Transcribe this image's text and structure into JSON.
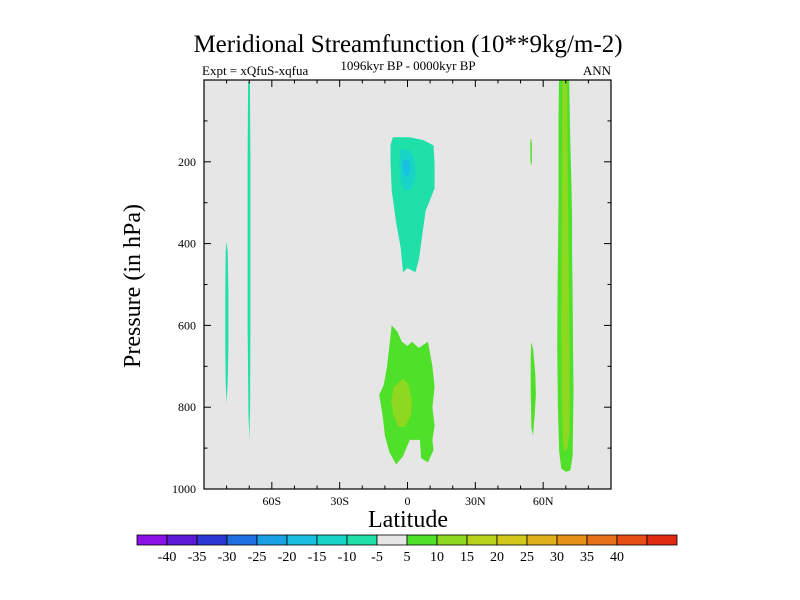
{
  "chart_data": {
    "type": "heatmap",
    "title": "Meridional Streamfunction (10**9kg/m-2)",
    "left_subtitle": "Expt = xQfuS-xqfua",
    "center_subtitle": "1096kyr BP - 0000kyr BP",
    "right_subtitle": "ANN",
    "xlabel": "Latitude",
    "ylabel": "Pressure (in hPa)",
    "xlim": [
      -90,
      90
    ],
    "ylim": [
      1000,
      0
    ],
    "x_ticks": [
      {
        "value": -60,
        "label": "60S"
      },
      {
        "value": -30,
        "label": "30S"
      },
      {
        "value": 0,
        "label": "0"
      },
      {
        "value": 30,
        "label": "30N"
      },
      {
        "value": 60,
        "label": "60N"
      }
    ],
    "y_ticks": [
      {
        "value": 200,
        "label": "200"
      },
      {
        "value": 400,
        "label": "400"
      },
      {
        "value": 600,
        "label": "600"
      },
      {
        "value": 800,
        "label": "800"
      },
      {
        "value": 1000,
        "label": "1000"
      }
    ],
    "background_color": "#e6e6e6",
    "colorbar": {
      "colors": [
        "#8a12e6",
        "#5c1ad6",
        "#2a38d2",
        "#1f6fe0",
        "#1aa0e4",
        "#19bfe0",
        "#18d4c8",
        "#1ee0a8",
        "#e6e6e6",
        "#4fe02a",
        "#8ed81f",
        "#b6d21a",
        "#d2c81a",
        "#e0b01a",
        "#e69018",
        "#e67018",
        "#e64e16",
        "#e02a12"
      ],
      "labels": [
        "-40",
        "-35",
        "-30",
        "-25",
        "-20",
        "-15",
        "-10",
        "-5",
        "5",
        "10",
        "15",
        "20",
        "25",
        "30",
        "35",
        "40"
      ]
    },
    "regions": [
      {
        "name": "ss-column-80s",
        "value": -7.5,
        "color": "#1ee0a8",
        "points": [
          [
            -80,
            395
          ],
          [
            -79.5,
            420
          ],
          [
            -79.2,
            520
          ],
          [
            -79.2,
            650
          ],
          [
            -79.5,
            740
          ],
          [
            -80,
            790
          ],
          [
            -80.4,
            740
          ],
          [
            -80.6,
            650
          ],
          [
            -80.6,
            520
          ],
          [
            -80.4,
            420
          ]
        ]
      },
      {
        "name": "ss-column-70s",
        "value": -7.5,
        "color": "#1ee0a8",
        "points": [
          [
            -70.5,
            5
          ],
          [
            -69.7,
            5
          ],
          [
            -69.5,
            200
          ],
          [
            -69.5,
            600
          ],
          [
            -69.6,
            800
          ],
          [
            -69.9,
            880
          ],
          [
            -70.3,
            820
          ],
          [
            -70.7,
            600
          ],
          [
            -70.7,
            200
          ]
        ]
      },
      {
        "name": "upper-eq-outer",
        "value": -7.5,
        "color": "#1ee0a8",
        "points": [
          [
            -6.5,
            140
          ],
          [
            1,
            140
          ],
          [
            7,
            147
          ],
          [
            11.5,
            160
          ],
          [
            12,
            205
          ],
          [
            12,
            265
          ],
          [
            8,
            320
          ],
          [
            5,
            440
          ],
          [
            3.5,
            470
          ],
          [
            0,
            460
          ],
          [
            -2,
            470
          ],
          [
            -3,
            410
          ],
          [
            -5,
            350
          ],
          [
            -7,
            270
          ],
          [
            -7.5,
            200
          ],
          [
            -7.5,
            160
          ]
        ]
      },
      {
        "name": "upper-eq-core",
        "value": -12.5,
        "color": "#18d4c8",
        "points": [
          [
            -3,
            170
          ],
          [
            0.5,
            170
          ],
          [
            3,
            190
          ],
          [
            3.5,
            230
          ],
          [
            2,
            265
          ],
          [
            -1,
            272
          ],
          [
            -3,
            250
          ],
          [
            -3.6,
            205
          ]
        ]
      },
      {
        "name": "upper-eq-peak",
        "value": -17.5,
        "color": "#19bfe0",
        "points": [
          [
            -1.8,
            195
          ],
          [
            0.5,
            195
          ],
          [
            1.2,
            215
          ],
          [
            0.3,
            235
          ],
          [
            -1.5,
            232
          ],
          [
            -2.2,
            212
          ]
        ]
      },
      {
        "name": "lower-eq-outer",
        "value": 7.5,
        "color": "#4fe02a",
        "points": [
          [
            -7,
            600
          ],
          [
            -4.5,
            615
          ],
          [
            -2.5,
            640
          ],
          [
            0,
            650
          ],
          [
            2,
            640
          ],
          [
            5,
            655
          ],
          [
            9,
            640
          ],
          [
            11,
            700
          ],
          [
            12,
            750
          ],
          [
            11,
            800
          ],
          [
            12,
            845
          ],
          [
            11,
            880
          ],
          [
            11.5,
            905
          ],
          [
            9,
            935
          ],
          [
            6,
            925
          ],
          [
            5.5,
            880
          ],
          [
            1,
            880
          ],
          [
            -2,
            920
          ],
          [
            -5,
            940
          ],
          [
            -8,
            910
          ],
          [
            -10,
            870
          ],
          [
            -11,
            820
          ],
          [
            -12.5,
            770
          ],
          [
            -10.5,
            745
          ],
          [
            -9,
            700
          ],
          [
            -8,
            650
          ]
        ]
      },
      {
        "name": "lower-eq-inner",
        "value": 12.5,
        "color": "#8ed81f",
        "points": [
          [
            -6,
            750
          ],
          [
            -2,
            730
          ],
          [
            0.5,
            745
          ],
          [
            2,
            785
          ],
          [
            1.5,
            820
          ],
          [
            -1,
            848
          ],
          [
            -4,
            848
          ],
          [
            -6.2,
            820
          ],
          [
            -7.2,
            785
          ]
        ]
      },
      {
        "name": "ss-column-55n",
        "value": 7.5,
        "color": "#4fe02a",
        "points": [
          [
            54.4,
            145
          ],
          [
            54.8,
            145
          ],
          [
            55,
            160
          ],
          [
            55,
            200
          ],
          [
            54.8,
            210
          ],
          [
            54.4,
            200
          ],
          [
            54.3,
            160
          ]
        ]
      },
      {
        "name": "ss-column-55n-low",
        "value": 7.5,
        "color": "#4fe02a",
        "points": [
          [
            54.7,
            640
          ],
          [
            55.6,
            660
          ],
          [
            56.5,
            720
          ],
          [
            56.8,
            770
          ],
          [
            56.2,
            820
          ],
          [
            55.5,
            870
          ],
          [
            54.8,
            850
          ],
          [
            54.5,
            760
          ],
          [
            54.5,
            680
          ]
        ]
      },
      {
        "name": "ss-column-70n-outer",
        "value": 7.5,
        "color": "#4fe02a",
        "points": [
          [
            67,
            0
          ],
          [
            71.5,
            0
          ],
          [
            72,
            150
          ],
          [
            72.5,
            250
          ],
          [
            72.8,
            330
          ],
          [
            72.8,
            420
          ],
          [
            73,
            520
          ],
          [
            73.2,
            640
          ],
          [
            73.4,
            760
          ],
          [
            73.2,
            860
          ],
          [
            73,
            920
          ],
          [
            72,
            955
          ],
          [
            70,
            958
          ],
          [
            68,
            950
          ],
          [
            67.1,
            910
          ],
          [
            66.5,
            800
          ],
          [
            66.2,
            650
          ],
          [
            66.4,
            500
          ],
          [
            66.8,
            300
          ],
          [
            66.8,
            100
          ]
        ]
      },
      {
        "name": "ss-column-70n-inner",
        "value": 12.5,
        "color": "#8ed81f",
        "points": [
          [
            68.5,
            0
          ],
          [
            70.5,
            0
          ],
          [
            70.8,
            200
          ],
          [
            71.2,
            420
          ],
          [
            71.5,
            600
          ],
          [
            71.8,
            760
          ],
          [
            71.6,
            860
          ],
          [
            70.8,
            900
          ],
          [
            69.5,
            910
          ],
          [
            68.7,
            880
          ],
          [
            68.2,
            760
          ],
          [
            68,
            600
          ],
          [
            68.2,
            400
          ],
          [
            68.4,
            200
          ]
        ]
      }
    ]
  }
}
